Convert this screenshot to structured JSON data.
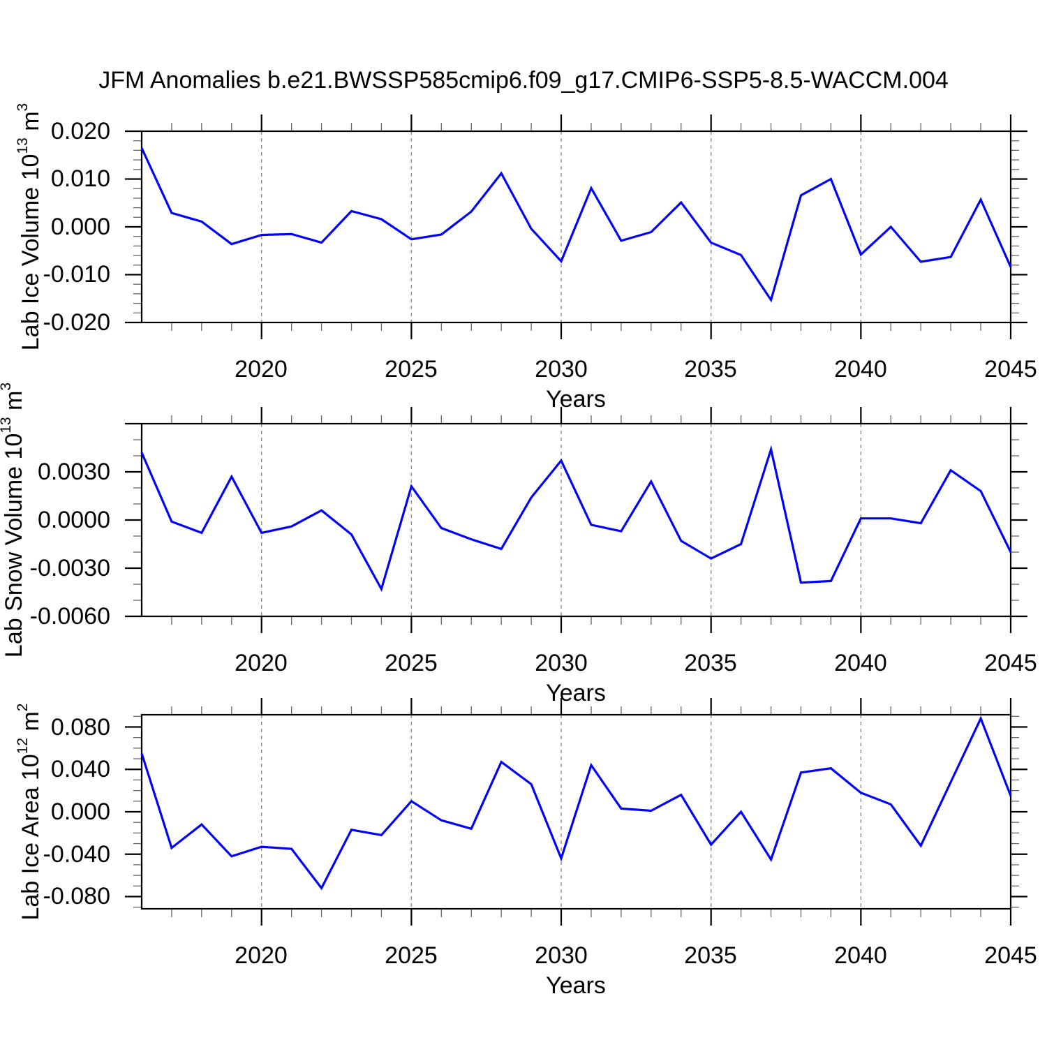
{
  "title": "JFM Anomalies b.e21.BWSSP585cmip6.f09_g17.CMIP6-SSP5-8.5-WACCM.004",
  "line_color": "#0000ff",
  "grid_color": "#8c8c8c",
  "axis_color": "#000000",
  "chart_data": [
    {
      "type": "line",
      "name": "lab-ice-volume",
      "ylabel": "Lab Ice Volume 10^13 m^3",
      "ylabel_parts": {
        "prefix": "Lab Ice Volume 10",
        "exp": "13",
        "unit": " m",
        "unit_exp": "3"
      },
      "xlabel": "Years",
      "x": [
        2016,
        2017,
        2018,
        2019,
        2020,
        2021,
        2022,
        2023,
        2024,
        2025,
        2026,
        2027,
        2028,
        2029,
        2030,
        2031,
        2032,
        2033,
        2034,
        2035,
        2036,
        2037,
        2038,
        2039,
        2040,
        2041,
        2042,
        2043,
        2044,
        2045
      ],
      "values": [
        0.0165,
        0.0029,
        0.0011,
        -0.0036,
        -0.0017,
        -0.0015,
        -0.0033,
        0.0033,
        0.0016,
        -0.0026,
        -0.0016,
        0.0032,
        0.0112,
        -0.0004,
        -0.0072,
        0.0081,
        -0.0029,
        -0.0011,
        0.0051,
        -0.0033,
        -0.0059,
        -0.0153,
        0.0066,
        0.01,
        -0.0058,
        0.0,
        -0.0073,
        -0.0063,
        0.0057,
        -0.0084
      ],
      "xlim": [
        2016,
        2045
      ],
      "ylim": [
        -0.02,
        0.02
      ],
      "ymajor_step": 0.01,
      "yminor_step": 0.002,
      "ytick_labels": [
        "0.020",
        "0.010",
        "0.000",
        "-0.010",
        "-0.020"
      ],
      "xtick_labels": [
        "2020",
        "2025",
        "2030",
        "2035",
        "2040",
        "2045"
      ],
      "xtick_values": [
        2020,
        2025,
        2030,
        2035,
        2040,
        2045
      ],
      "grid_years": [
        2020,
        2025,
        2030,
        2035,
        2040
      ],
      "grid": "vertical-dashed",
      "legend": "none"
    },
    {
      "type": "line",
      "name": "lab-snow-volume",
      "ylabel": "Lab Snow Volume 10^13 m^3",
      "ylabel_parts": {
        "prefix": "Lab Snow Volume 10",
        "exp": "13",
        "unit": " m",
        "unit_exp": "3"
      },
      "xlabel": "Years",
      "x": [
        2016,
        2017,
        2018,
        2019,
        2020,
        2021,
        2022,
        2023,
        2024,
        2025,
        2026,
        2027,
        2028,
        2029,
        2030,
        2031,
        2032,
        2033,
        2034,
        2035,
        2036,
        2037,
        2038,
        2039,
        2040,
        2041,
        2042,
        2043,
        2044,
        2045
      ],
      "values": [
        0.0042,
        -0.0001,
        -0.0008,
        0.0027,
        -0.0008,
        -0.0004,
        0.0006,
        -0.0009,
        -0.0043,
        0.0021,
        -0.0005,
        -0.0012,
        -0.0018,
        0.0014,
        0.0037,
        -0.0003,
        -0.0007,
        0.0024,
        -0.0013,
        -0.0024,
        -0.0015,
        0.0044,
        -0.0039,
        -0.0038,
        0.0001,
        0.0001,
        -0.0002,
        0.0031,
        0.0018,
        -0.002
      ],
      "xlim": [
        2016,
        2045
      ],
      "ylim": [
        -0.006,
        0.006
      ],
      "ymajor_step": 0.003,
      "yminor_step": 0.001,
      "ytick_labels": [
        "0.0030",
        "0.0000",
        "-0.0030",
        "-0.0060"
      ],
      "xtick_labels": [
        "2020",
        "2025",
        "2030",
        "2035",
        "2040",
        "2045"
      ],
      "xtick_values": [
        2020,
        2025,
        2030,
        2035,
        2040,
        2045
      ],
      "grid_years": [
        2020,
        2025,
        2030,
        2035,
        2040
      ],
      "grid": "vertical-dashed",
      "legend": "none"
    },
    {
      "type": "line",
      "name": "lab-ice-area",
      "ylabel": "Lab Ice Area 10^12 m^2",
      "ylabel_parts": {
        "prefix": "Lab Ice Area 10",
        "exp": "12",
        "unit": " m",
        "unit_exp": "2"
      },
      "xlabel": "Years",
      "x": [
        2016,
        2017,
        2018,
        2019,
        2020,
        2021,
        2022,
        2023,
        2024,
        2025,
        2026,
        2027,
        2028,
        2029,
        2030,
        2031,
        2032,
        2033,
        2034,
        2035,
        2036,
        2037,
        2038,
        2039,
        2040,
        2041,
        2042,
        2043,
        2044,
        2045
      ],
      "values": [
        0.055,
        -0.034,
        -0.012,
        -0.042,
        -0.033,
        -0.035,
        -0.072,
        -0.017,
        -0.022,
        0.01,
        -0.008,
        -0.016,
        0.047,
        0.026,
        -0.044,
        0.044,
        0.003,
        0.001,
        0.016,
        -0.031,
        0.0,
        -0.045,
        0.037,
        0.041,
        0.018,
        0.007,
        -0.032,
        0.028,
        0.088,
        0.015
      ],
      "xlim": [
        2016,
        2045
      ],
      "ylim": [
        -0.0915,
        0.0915
      ],
      "ymajor_step": 0.04,
      "yminor_step": 0.01,
      "ytick_labels": [
        "0.080",
        "0.040",
        "0.000",
        "-0.040",
        "-0.080"
      ],
      "xtick_labels": [
        "2020",
        "2025",
        "2030",
        "2035",
        "2040",
        "2045"
      ],
      "xtick_values": [
        2020,
        2025,
        2030,
        2035,
        2040,
        2045
      ],
      "grid_years": [
        2020,
        2025,
        2030,
        2035,
        2040
      ],
      "grid": "vertical-dashed",
      "legend": "none"
    }
  ]
}
